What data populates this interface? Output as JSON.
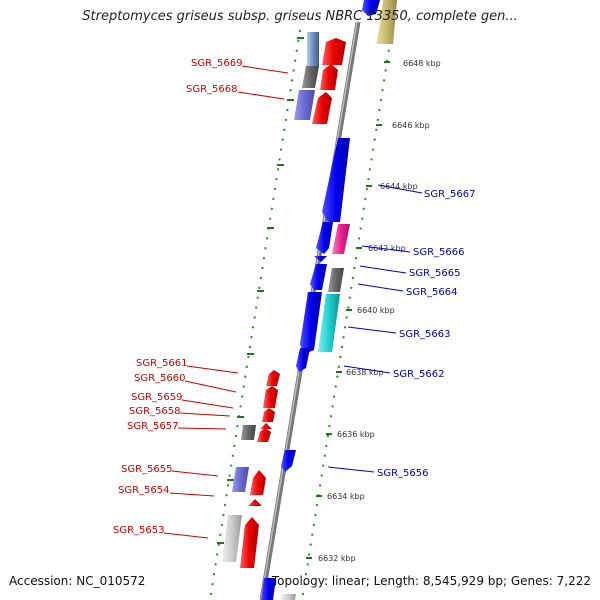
{
  "title": "Streptomyces griseus subsp. griseus NBRC 13350, complete gen...",
  "footer": {
    "accession": "Accession: NC_010572",
    "summary": "Topology: linear; Length: 8,545,929 bp; Genes: 7,222"
  },
  "colors": {
    "backbone": "#8a8a8a",
    "ruler": "#2a8a2a",
    "left_label": "#cc0000",
    "right_label": "#0000aa"
  },
  "ruler_ticks": [
    "6648 kbp",
    "6646 kbp",
    "6644 kbp",
    "6642 kbp",
    "6640 kbp",
    "6638 kbp",
    "6636 kbp",
    "6634 kbp",
    "6632 kbp"
  ],
  "left_genes": [
    "SGR_5669",
    "SGR_5668",
    "SGR_5661",
    "SGR_5660",
    "SGR_5659",
    "SGR_5658",
    "SGR_5657",
    "SGR_5655",
    "SGR_5654",
    "SGR_5653"
  ],
  "right_genes": [
    "SGR_5667",
    "SGR_5666",
    "SGR_5665",
    "SGR_5664",
    "SGR_5663",
    "SGR_5662",
    "SGR_5656"
  ]
}
